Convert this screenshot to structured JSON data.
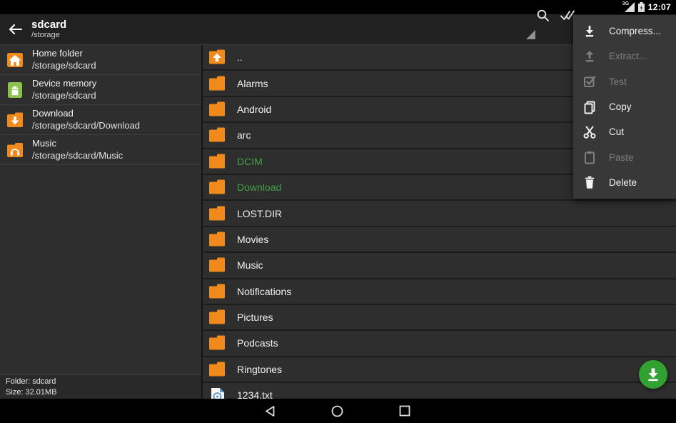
{
  "status_bar": {
    "time": "12:07",
    "network_label": "3G"
  },
  "app_bar": {
    "title": "sdcard",
    "subtitle": "/storage"
  },
  "menu": {
    "items": [
      {
        "label": "Compress...",
        "icon": "compress-icon",
        "enabled": true
      },
      {
        "label": "Extract...",
        "icon": "extract-icon",
        "enabled": false
      },
      {
        "label": "Test",
        "icon": "test-icon",
        "enabled": false
      },
      {
        "label": "Copy",
        "icon": "copy-icon",
        "enabled": true
      },
      {
        "label": "Cut",
        "icon": "cut-icon",
        "enabled": true
      },
      {
        "label": "Paste",
        "icon": "paste-icon",
        "enabled": false
      },
      {
        "label": "Delete",
        "icon": "delete-icon",
        "enabled": true
      }
    ]
  },
  "sidebar": {
    "items": [
      {
        "label": "Home folder",
        "path": "/storage/sdcard",
        "icon": "home-folder-icon"
      },
      {
        "label": "Device memory",
        "path": "/storage/sdcard",
        "icon": "device-memory-icon"
      },
      {
        "label": "Download",
        "path": "/storage/sdcard/Download",
        "icon": "download-folder-icon"
      },
      {
        "label": "Music",
        "path": "/storage/sdcard/Music",
        "icon": "music-folder-icon"
      }
    ],
    "footer": {
      "folder": "Folder: sdcard",
      "size": "Size: 32.01MB"
    }
  },
  "file_list": {
    "items": [
      {
        "name": "..",
        "icon": "parent-folder-icon",
        "selected": false
      },
      {
        "name": "Alarms",
        "icon": "folder-icon",
        "selected": false
      },
      {
        "name": "Android",
        "icon": "folder-icon",
        "selected": false
      },
      {
        "name": "arc",
        "icon": "folder-icon",
        "selected": false
      },
      {
        "name": "DCIM",
        "icon": "folder-icon",
        "selected": true
      },
      {
        "name": "Download",
        "icon": "folder-icon",
        "selected": true
      },
      {
        "name": "LOST.DIR",
        "icon": "folder-icon",
        "selected": false
      },
      {
        "name": "Movies",
        "icon": "folder-icon",
        "selected": false
      },
      {
        "name": "Music",
        "icon": "folder-icon",
        "selected": false
      },
      {
        "name": "Notifications",
        "icon": "folder-icon",
        "selected": false
      },
      {
        "name": "Pictures",
        "icon": "folder-icon",
        "selected": false
      },
      {
        "name": "Podcasts",
        "icon": "folder-icon",
        "selected": false
      },
      {
        "name": "Ringtones",
        "icon": "folder-icon",
        "selected": false
      },
      {
        "name": "1234.txt",
        "icon": "text-file-icon",
        "selected": false
      }
    ]
  },
  "fab": {
    "icon": "download-icon"
  },
  "colors": {
    "folder_orange": "#F08A1D",
    "selected_green": "#43A047",
    "fab_green": "#31A231",
    "android_green": "#8BC34A",
    "menu_bg": "#383838",
    "row_bg": "#2e2e2e"
  }
}
